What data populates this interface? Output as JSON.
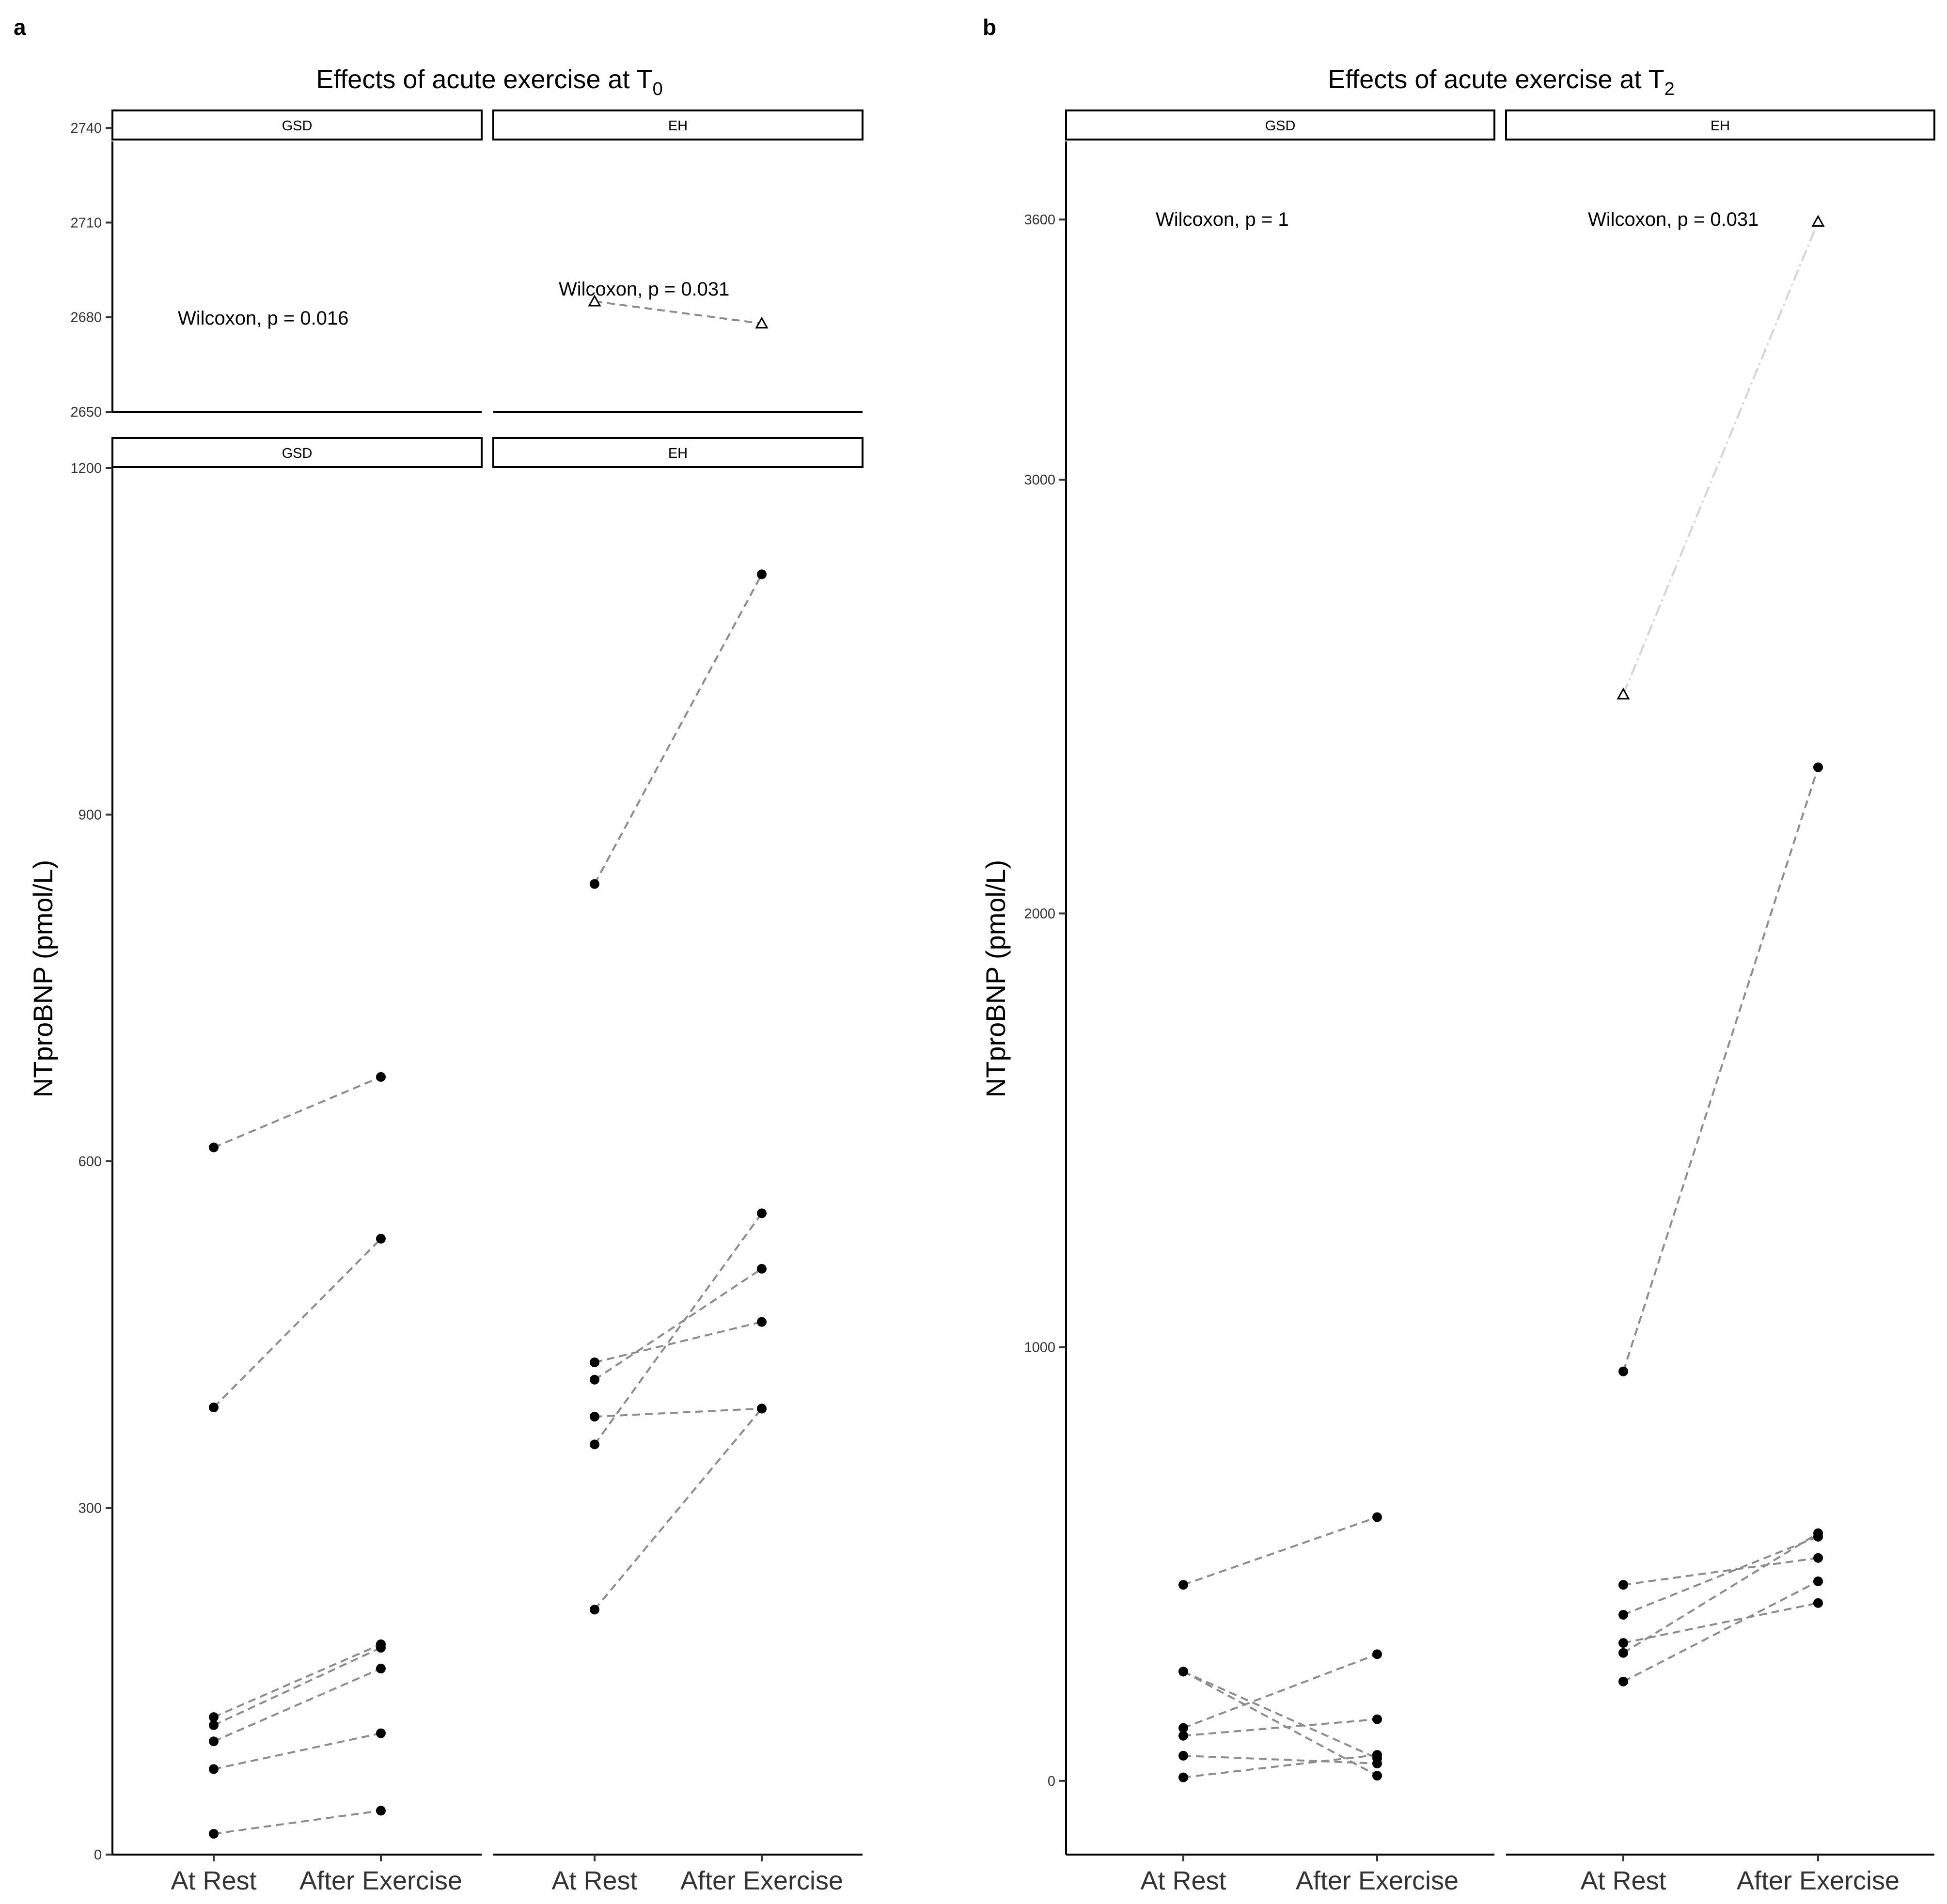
{
  "chart_data": [
    {
      "panel_label": "a",
      "type": "line",
      "title": "Effects of acute exercise at T",
      "title_subscript": "0",
      "ylabel": "NTproBNP (pmol/L)",
      "xlabel": "",
      "categories": [
        "At Rest",
        "After Exercise"
      ],
      "facets": [
        "GSD",
        "EH"
      ],
      "grid": false,
      "upper_axis": {
        "ylim": [
          2650,
          2750
        ],
        "ticks": [
          "2650",
          "2680",
          "2710",
          "2740"
        ]
      },
      "lower_axis": {
        "ylim": [
          0,
          1200
        ],
        "ticks": [
          "0",
          "300",
          "600",
          "900",
          "1200"
        ]
      },
      "annotations": [
        {
          "facet": "GSD",
          "text": "Wilcoxon, p = 0.016"
        },
        {
          "facet": "EH",
          "text": "Wilcoxon, p = 0.031"
        }
      ],
      "series": [
        {
          "facet": "GSD",
          "marker": "circle",
          "values": [
            612,
            673
          ]
        },
        {
          "facet": "GSD",
          "marker": "circle",
          "values": [
            387,
            533
          ]
        },
        {
          "facet": "GSD",
          "marker": "circle",
          "values": [
            119,
            182
          ]
        },
        {
          "facet": "GSD",
          "marker": "circle",
          "values": [
            112,
            179
          ]
        },
        {
          "facet": "GSD",
          "marker": "circle",
          "values": [
            98,
            161
          ]
        },
        {
          "facet": "GSD",
          "marker": "circle",
          "values": [
            74,
            105
          ]
        },
        {
          "facet": "GSD",
          "marker": "circle",
          "values": [
            18,
            38
          ]
        },
        {
          "facet": "EH",
          "marker": "triangle",
          "values": [
            2685,
            2678
          ]
        },
        {
          "facet": "EH",
          "marker": "circle",
          "values": [
            840,
            1108
          ]
        },
        {
          "facet": "EH",
          "marker": "circle",
          "values": [
            426,
            461
          ]
        },
        {
          "facet": "EH",
          "marker": "circle",
          "values": [
            411,
            507
          ]
        },
        {
          "facet": "EH",
          "marker": "circle",
          "values": [
            379,
            386
          ]
        },
        {
          "facet": "EH",
          "marker": "circle",
          "values": [
            355,
            555
          ]
        },
        {
          "facet": "EH",
          "marker": "circle",
          "values": [
            212,
            386
          ]
        }
      ]
    },
    {
      "panel_label": "b",
      "type": "line",
      "title": "Effects of acute exercise at T",
      "title_subscript": "2",
      "ylabel": "NTproBNP (pmol/L)",
      "xlabel": "",
      "categories": [
        "At Rest",
        "After Exercise"
      ],
      "facets": [
        "GSD",
        "EH"
      ],
      "grid": false,
      "ylim": [
        -170,
        3780
      ],
      "ticks": [
        "0",
        "1000",
        "2000",
        "3000",
        "3600"
      ],
      "annotations": [
        {
          "facet": "GSD",
          "text": "Wilcoxon, p = 1"
        },
        {
          "facet": "EH",
          "text": "Wilcoxon, p = 0.031"
        }
      ],
      "series": [
        {
          "facet": "GSD",
          "marker": "circle",
          "values": [
            452,
            608
          ]
        },
        {
          "facet": "GSD",
          "marker": "circle",
          "values": [
            252,
            12
          ]
        },
        {
          "facet": "GSD",
          "marker": "circle",
          "values": [
            252,
            52
          ]
        },
        {
          "facet": "GSD",
          "marker": "circle",
          "values": [
            122,
            292
          ]
        },
        {
          "facet": "GSD",
          "marker": "circle",
          "values": [
            104,
            142
          ]
        },
        {
          "facet": "GSD",
          "marker": "circle",
          "values": [
            58,
            40
          ]
        },
        {
          "facet": "GSD",
          "marker": "circle",
          "values": [
            8,
            60
          ]
        },
        {
          "facet": "EH",
          "marker": "triangle",
          "values": [
            2505,
            3595
          ]
        },
        {
          "facet": "EH",
          "marker": "circle",
          "values": [
            944,
            2337
          ]
        },
        {
          "facet": "EH",
          "marker": "circle",
          "values": [
            452,
            514
          ]
        },
        {
          "facet": "EH",
          "marker": "circle",
          "values": [
            383,
            563
          ]
        },
        {
          "facet": "EH",
          "marker": "circle",
          "values": [
            318,
            410
          ]
        },
        {
          "facet": "EH",
          "marker": "circle",
          "values": [
            295,
            571
          ]
        },
        {
          "facet": "EH",
          "marker": "circle",
          "values": [
            229,
            460
          ]
        }
      ]
    }
  ]
}
